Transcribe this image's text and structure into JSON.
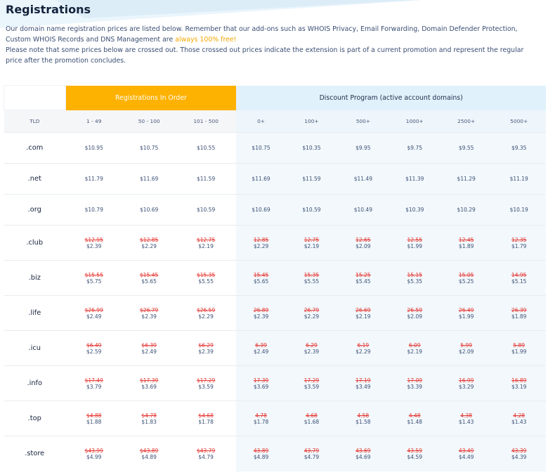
{
  "page": {
    "title": "Registrations",
    "intro_line1": "Our domain name registration prices are listed below. Remember that our add-ons such as WHOIS Privacy, Email Forwarding, Domain Defender Protection, Custom WHOIS Records and DNS Management are ",
    "intro_highlight": "always 100% free!",
    "intro_line2": "Please note that some prices below are crossed out. Those crossed out prices indicate the extension is part of a current promotion and represent the regular price after the promotion concludes.",
    "highlight_color": "#f5a700"
  },
  "table": {
    "group_headers": {
      "registrations": "Registrations In Order",
      "discount": "Discount Program (active account domains)"
    },
    "colors": {
      "orange": "#fdb100",
      "blue": "#e1f1fb",
      "strike": "#e53935"
    },
    "columns": [
      "TLD",
      "1 - 49",
      "50 - 100",
      "101 - 500",
      "0+",
      "100+",
      "500+",
      "1000+",
      "2500+",
      "5000+"
    ],
    "rows": [
      {
        "tld": ".com",
        "old": null,
        "new": [
          "$10.95",
          "$10.75",
          "$10.55",
          "$10.75",
          "$10.35",
          "$9.95",
          "$9.75",
          "$9.55",
          "$9.35"
        ]
      },
      {
        "tld": ".net",
        "old": null,
        "new": [
          "$11.79",
          "$11.69",
          "$11.59",
          "$11.69",
          "$11.59",
          "$11.49",
          "$11.39",
          "$11.29",
          "$11.19"
        ]
      },
      {
        "tld": ".org",
        "old": null,
        "new": [
          "$10.79",
          "$10.69",
          "$10.59",
          "$10.69",
          "$10.59",
          "$10.49",
          "$10.39",
          "$10.29",
          "$10.19"
        ]
      },
      {
        "tld": ".club",
        "old": [
          "$12.95",
          "$12.85",
          "$12.75",
          "12.85",
          "12.75",
          "12.65",
          "12.55",
          "12.45",
          "12.35"
        ],
        "new": [
          "$2.39",
          "$2.29",
          "$2.19",
          "$2.29",
          "$2.19",
          "$2.09",
          "$1.99",
          "$1.89",
          "$1.79"
        ]
      },
      {
        "tld": ".biz",
        "old": [
          "$15.55",
          "$15.45",
          "$15.35",
          "15.45",
          "15.35",
          "15.25",
          "15.15",
          "15.05",
          "14.95"
        ],
        "new": [
          "$5.75",
          "$5.65",
          "$5.55",
          "$5.65",
          "$5.55",
          "$5.45",
          "$5.35",
          "$5.25",
          "$5.15"
        ]
      },
      {
        "tld": ".life",
        "old": [
          "$26.99",
          "$26.79",
          "$26.59",
          "26.89",
          "26.79",
          "26.69",
          "26.59",
          "26.49",
          "26.39"
        ],
        "new": [
          "$2.49",
          "$2.39",
          "$2.29",
          "$2.39",
          "$2.29",
          "$2.19",
          "$2.09",
          "$1.99",
          "$1.89"
        ]
      },
      {
        "tld": ".icu",
        "old": [
          "$6.49",
          "$6.39",
          "$6.29",
          "6.39",
          "6.29",
          "6.19",
          "6.09",
          "5.99",
          "5.89"
        ],
        "new": [
          "$2.59",
          "$2.49",
          "$2.39",
          "$2.49",
          "$2.39",
          "$2.29",
          "$2.19",
          "$2.09",
          "$1.99"
        ]
      },
      {
        "tld": ".info",
        "old": [
          "$17.49",
          "$17.39",
          "$17.29",
          "17.39",
          "17.29",
          "17.19",
          "17.09",
          "16.99",
          "16.89"
        ],
        "new": [
          "$3.79",
          "$3.69",
          "$3.59",
          "$3.69",
          "$3.59",
          "$3.49",
          "$3.39",
          "$3.29",
          "$3.19"
        ]
      },
      {
        "tld": ".top",
        "old": [
          "$4.88",
          "$4.78",
          "$4.68",
          "4.78",
          "4.68",
          "4.58",
          "4.48",
          "4.38",
          "4.28"
        ],
        "new": [
          "$1.88",
          "$1.83",
          "$1.78",
          "$1.78",
          "$1.68",
          "$1.58",
          "$1.48",
          "$1.43",
          "$1.43"
        ]
      },
      {
        "tld": ".store",
        "old": [
          "$43.99",
          "$43.89",
          "$43.79",
          "43.89",
          "43.79",
          "43.69",
          "43.59",
          "43.49",
          "43.39"
        ],
        "new": [
          "$4.99",
          "$4.89",
          "$4.79",
          "$4.89",
          "$4.79",
          "$4.69",
          "$4.59",
          "$4.49",
          "$4.39"
        ]
      }
    ]
  }
}
